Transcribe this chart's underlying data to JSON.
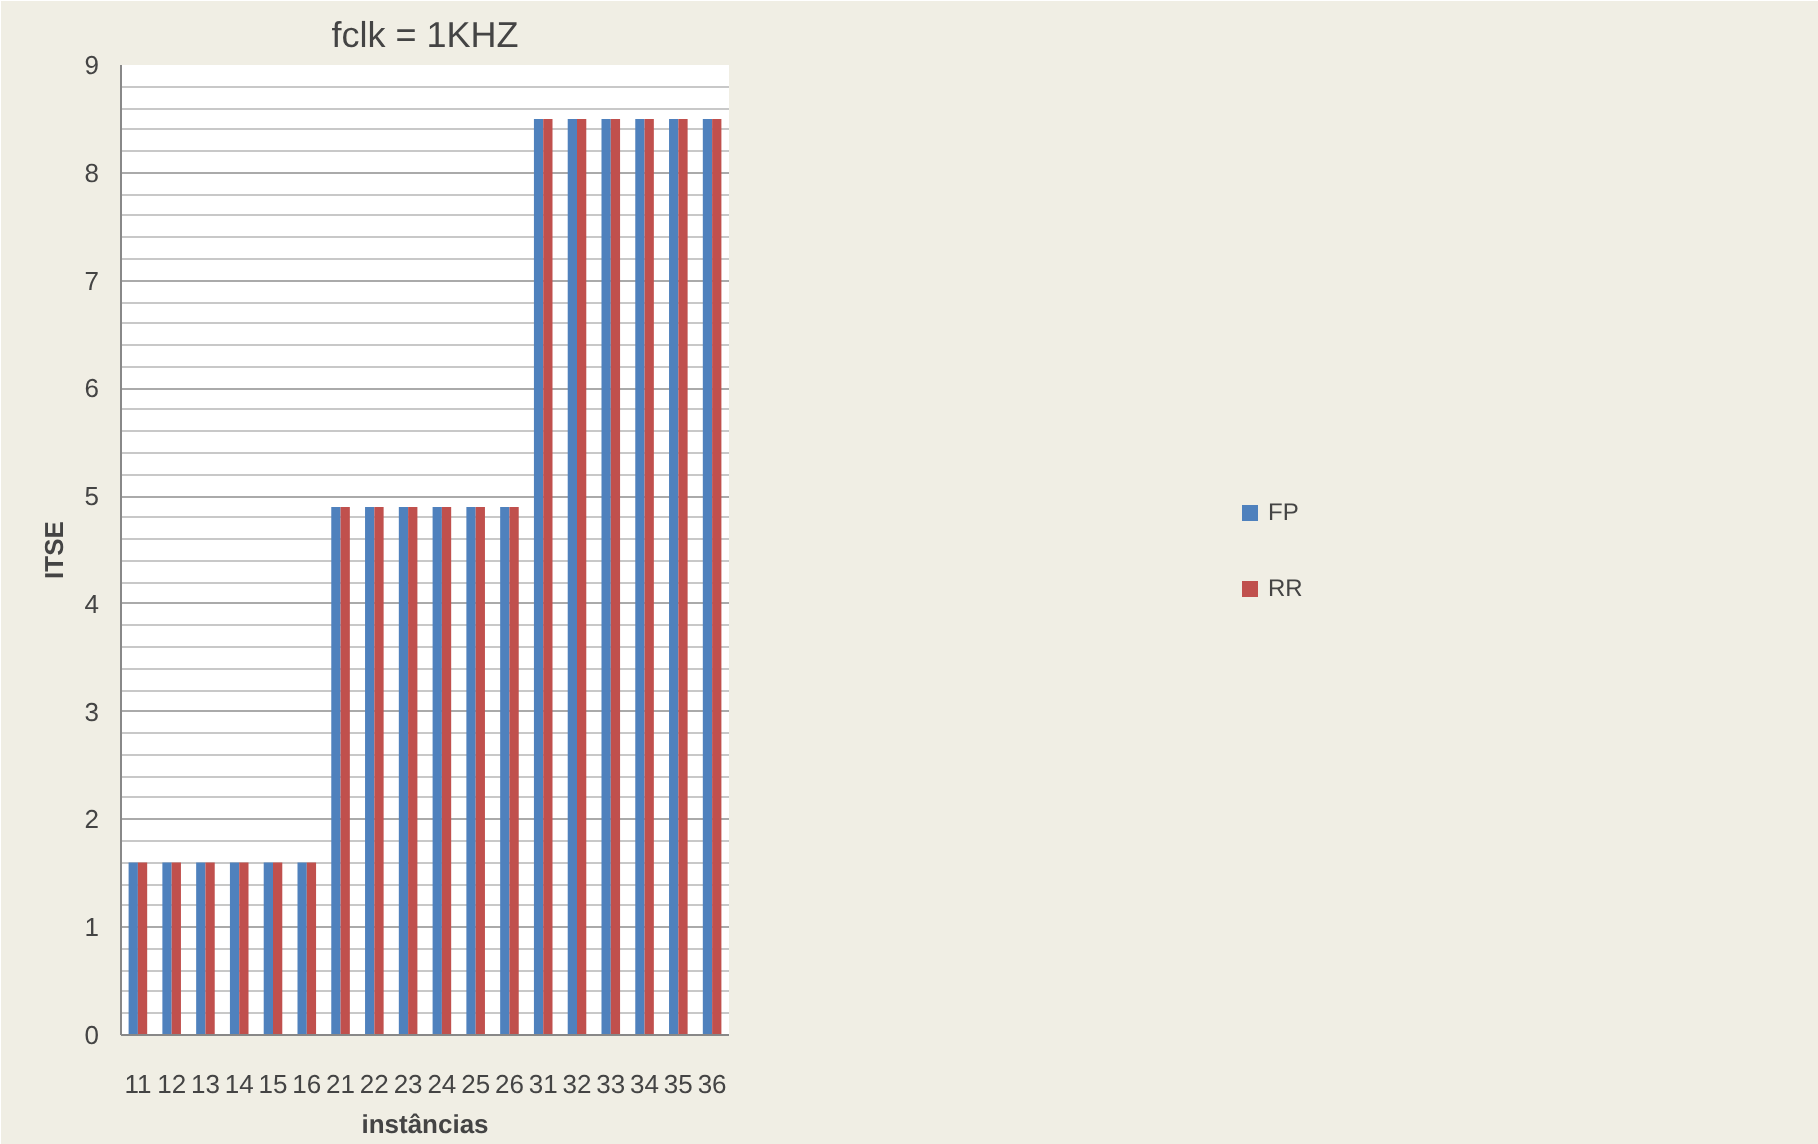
{
  "chart_data": {
    "type": "bar",
    "title": "fclk = 1KHZ",
    "xlabel": "instâncias",
    "ylabel": "ITSE",
    "categories": [
      "11",
      "12",
      "13",
      "14",
      "15",
      "16",
      "21",
      "22",
      "23",
      "24",
      "25",
      "26",
      "31",
      "32",
      "33",
      "34",
      "35",
      "36"
    ],
    "series": [
      {
        "name": "FP",
        "color": "#4f81bd",
        "values": [
          1.6,
          1.6,
          1.6,
          1.6,
          1.6,
          1.6,
          4.9,
          4.9,
          4.9,
          4.9,
          4.9,
          4.9,
          8.5,
          8.5,
          8.5,
          8.5,
          8.5,
          8.5
        ]
      },
      {
        "name": "RR",
        "color": "#c0504d",
        "values": [
          1.6,
          1.6,
          1.6,
          1.6,
          1.6,
          1.6,
          4.9,
          4.9,
          4.9,
          4.9,
          4.9,
          4.9,
          8.5,
          8.5,
          8.5,
          8.5,
          8.5,
          8.5
        ]
      }
    ],
    "ylim": [
      0,
      9
    ],
    "yticks": [
      0,
      1,
      2,
      3,
      4,
      5,
      6,
      7,
      8,
      9
    ],
    "grid": "y",
    "legend": "right"
  }
}
